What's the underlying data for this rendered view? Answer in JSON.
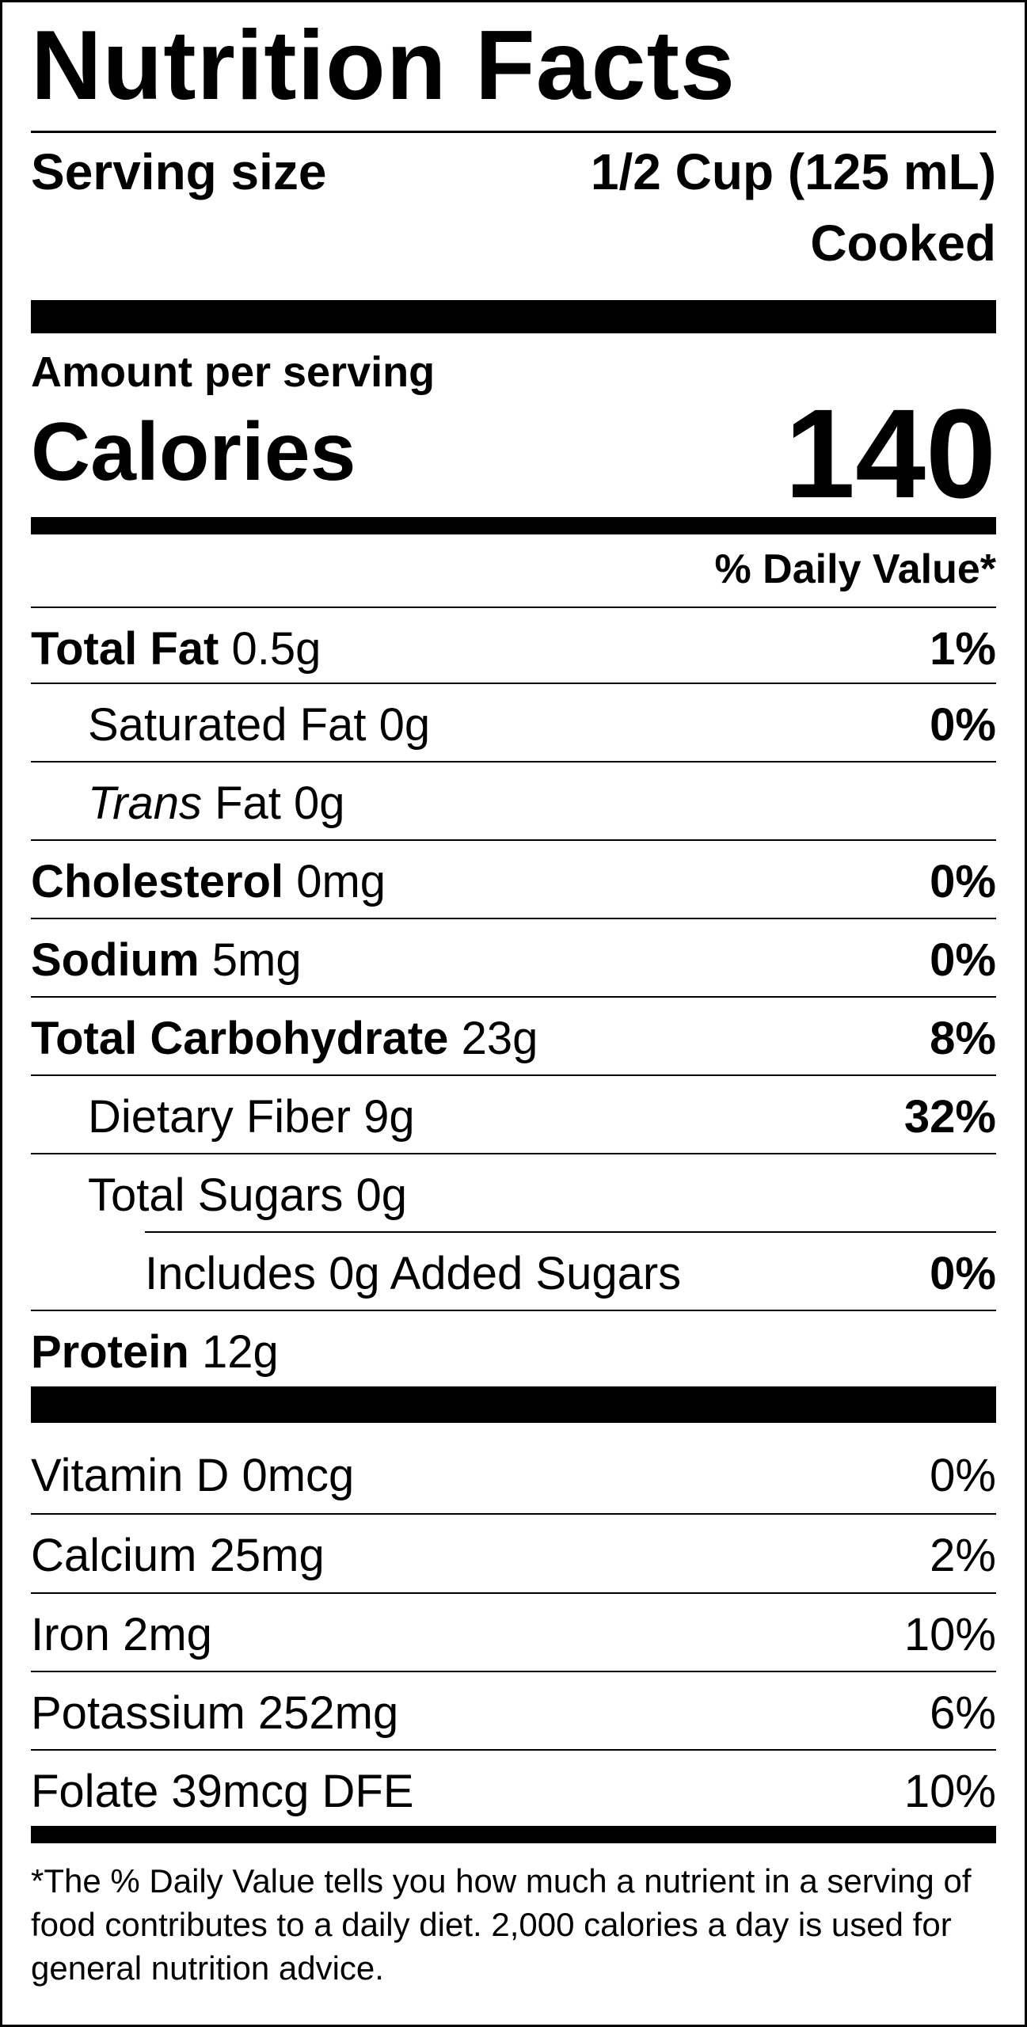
{
  "title": "Nutrition Facts",
  "serving": {
    "label": "Serving size",
    "size": "1/2 Cup (125 mL)",
    "note": "Cooked"
  },
  "amount_per_serving": "Amount per serving",
  "calories": {
    "label": "Calories",
    "value": "140"
  },
  "daily_value_header": "% Daily Value*",
  "nutrients": [
    {
      "name": "Total Fat",
      "amount": "0.5g",
      "dv": "1%"
    },
    {
      "name": "Saturated Fat",
      "amount": "0g",
      "dv": "0%"
    },
    {
      "name": "Trans",
      "name_suffix": "Fat",
      "amount": "0g",
      "dv": ""
    },
    {
      "name": "Cholesterol",
      "amount": "0mg",
      "dv": "0%"
    },
    {
      "name": "Sodium",
      "amount": "5mg",
      "dv": "0%"
    },
    {
      "name": "Total Carbohydrate",
      "amount": "23g",
      "dv": "8%"
    },
    {
      "name": "Dietary Fiber",
      "amount": "9g",
      "dv": "32%"
    },
    {
      "name": "Total Sugars",
      "amount": "0g",
      "dv": ""
    },
    {
      "name": "Includes 0g Added Sugars",
      "amount": "",
      "dv": "0%"
    },
    {
      "name": "Protein",
      "amount": "12g",
      "dv": ""
    }
  ],
  "vitamins": [
    {
      "name": "Vitamin D",
      "amount": "0mcg",
      "dv": "0%"
    },
    {
      "name": "Calcium",
      "amount": "25mg",
      "dv": "2%"
    },
    {
      "name": "Iron",
      "amount": "2mg",
      "dv": "10%"
    },
    {
      "name": "Potassium",
      "amount": "252mg",
      "dv": "6%"
    },
    {
      "name": "Folate",
      "amount": "39mcg DFE",
      "dv": "10%"
    }
  ],
  "footnote": "*The % Daily Value tells you how much a nutrient in a serving of food contributes to a daily diet. 2,000 calories a day is used for general nutrition advice."
}
